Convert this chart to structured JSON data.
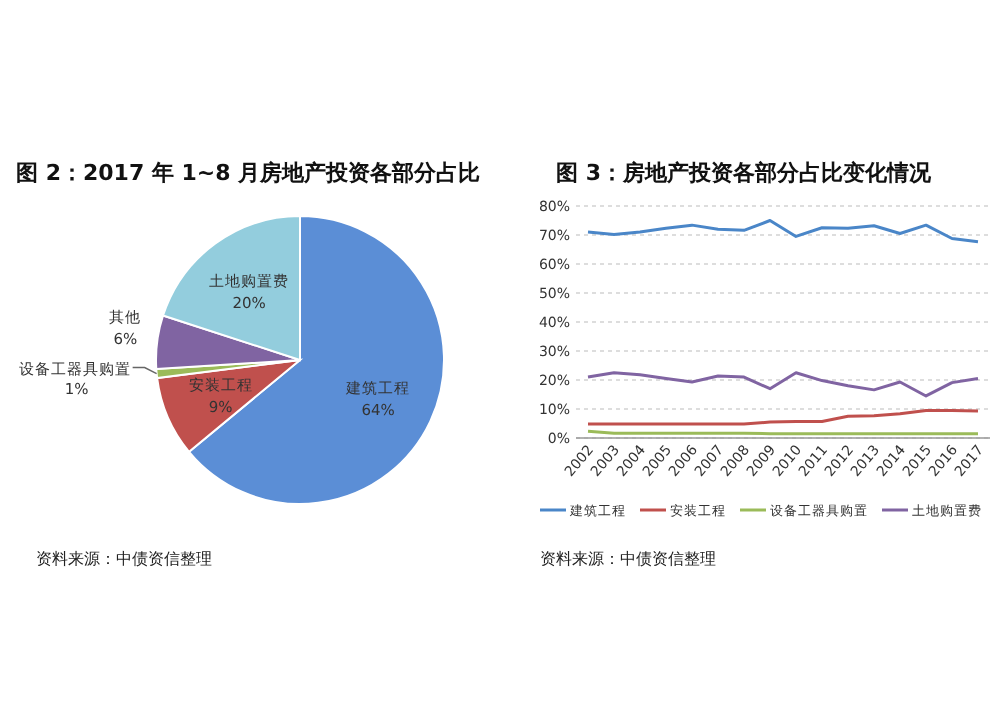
{
  "chart_data": [
    {
      "type": "pie",
      "title": "图 2：2017 年 1~8 月房地产投资各部分占比",
      "categories": [
        "建筑工程",
        "安装工程",
        "设备工器具购置",
        "其他",
        "土地购置费"
      ],
      "values": [
        64,
        9,
        1,
        6,
        20
      ],
      "colors": [
        "#5b8ed6",
        "#c0504d",
        "#9bbb59",
        "#8064a2",
        "#93cddd"
      ],
      "value_labels": [
        "64%",
        "9%",
        "1%",
        "6%",
        "20%"
      ],
      "annotations": [
        "资料来源：中债资信整理"
      ]
    },
    {
      "type": "line",
      "title": "图 3：房地产投资各部分占比变化情况",
      "categories": [
        "2002",
        "2003",
        "2004",
        "2005",
        "2006",
        "2007",
        "2008",
        "2009",
        "2010",
        "2011",
        "2012",
        "2013",
        "2014",
        "2015",
        "2016",
        "2017"
      ],
      "ylim": [
        0,
        80
      ],
      "yticks": [
        {
          "value": 0,
          "label": "0%"
        },
        {
          "value": 10,
          "label": "10%"
        },
        {
          "value": 20,
          "label": "20%"
        },
        {
          "value": 30,
          "label": "30%"
        },
        {
          "value": 40,
          "label": "40%"
        },
        {
          "value": 50,
          "label": "50%"
        },
        {
          "value": 60,
          "label": "60%"
        },
        {
          "value": 70,
          "label": "70%"
        },
        {
          "value": 80,
          "label": "80%"
        }
      ],
      "grid": "y",
      "legend": "bottom",
      "annotations": [
        "资料来源：中债资信整理"
      ],
      "series": [
        {
          "name": "建筑工程",
          "color": "#4a86c8",
          "values": [
            71,
            70.2,
            71,
            72.3,
            73.4,
            72,
            71.6,
            75,
            69.5,
            72.5,
            72.3,
            73.2,
            70.5,
            73.4,
            68.8,
            67.7
          ]
        },
        {
          "name": "安装工程",
          "color": "#c0504d",
          "values": [
            4.8,
            4.8,
            4.8,
            4.8,
            4.8,
            4.8,
            4.8,
            5.5,
            5.7,
            5.7,
            7.5,
            7.7,
            8.4,
            9.5,
            9.5,
            9.3
          ]
        },
        {
          "name": "设备工器具购置",
          "color": "#9bbb59",
          "values": [
            2.3,
            1.6,
            1.6,
            1.6,
            1.6,
            1.6,
            1.6,
            1.5,
            1.5,
            1.5,
            1.5,
            1.5,
            1.5,
            1.5,
            1.5,
            1.5
          ]
        },
        {
          "name": "土地购置费",
          "color": "#8064a2",
          "values": [
            21,
            22.5,
            21.8,
            20.5,
            19.3,
            21.4,
            21,
            17,
            22.5,
            19.8,
            18,
            16.6,
            19.3,
            14.5,
            19.1,
            20.5
          ]
        }
      ]
    }
  ]
}
